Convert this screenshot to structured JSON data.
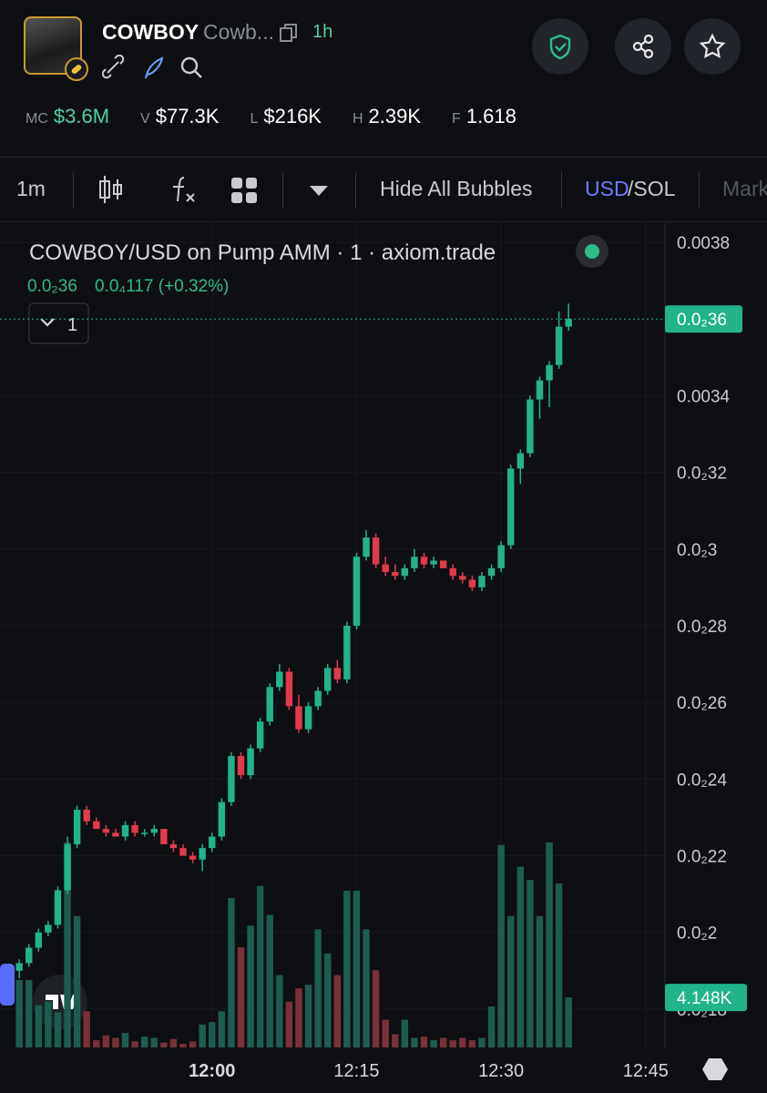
{
  "header": {
    "symbol": "COWBOY",
    "name": "Cowb...",
    "age": "1h",
    "stats": [
      {
        "label": "MC",
        "value": "$3.6M"
      },
      {
        "label": "V",
        "value": "$77.3K"
      },
      {
        "label": "L",
        "value": "$216K"
      },
      {
        "label": "H",
        "value": "2.39K"
      },
      {
        "label": "F",
        "value": "1.618"
      }
    ]
  },
  "toolbar": {
    "interval": "1m",
    "bubbles": "Hide All Bubbles",
    "currency": "USD",
    "quote": "/SOL",
    "more": "Mark"
  },
  "chart_data": {
    "type": "candlestick",
    "title": "COWBOY/USD on Pump AMM · 1 · axiom.trade",
    "change": "0.0₄117 (+0.32%)",
    "pane_label": "1",
    "x": [
      "11:40",
      "11:41",
      "11:42",
      "11:43",
      "11:44",
      "11:45",
      "11:46",
      "11:47",
      "11:48",
      "11:49",
      "11:50",
      "11:51",
      "11:52",
      "11:53",
      "11:54",
      "11:55",
      "11:56",
      "11:57",
      "11:58",
      "11:59",
      "12:00",
      "12:01",
      "12:02",
      "12:03",
      "12:04",
      "12:05",
      "12:06",
      "12:07",
      "12:08",
      "12:09",
      "12:10",
      "12:11",
      "12:12",
      "12:13",
      "12:14",
      "12:15",
      "12:16",
      "12:17",
      "12:18",
      "12:19",
      "12:20",
      "12:21",
      "12:22",
      "12:23",
      "12:24",
      "12:25",
      "12:26",
      "12:27",
      "12:28",
      "12:29",
      "12:30",
      "12:31",
      "12:32",
      "12:33",
      "12:34",
      "12:35",
      "12:36",
      "12:37"
    ],
    "open": [
      0.0019,
      0.00192,
      0.00196,
      0.002,
      0.00202,
      0.00211,
      0.00223,
      0.00232,
      0.00229,
      0.00227,
      0.00226,
      0.00225,
      0.00228,
      0.00226,
      0.00226,
      0.00227,
      0.00223,
      0.00222,
      0.0022,
      0.00219,
      0.00222,
      0.00225,
      0.00234,
      0.00246,
      0.00241,
      0.00248,
      0.00255,
      0.00264,
      0.00268,
      0.00259,
      0.00253,
      0.00259,
      0.00263,
      0.00269,
      0.00266,
      0.0028,
      0.00298,
      0.00303,
      0.00296,
      0.00294,
      0.00293,
      0.00295,
      0.00298,
      0.00296,
      0.00297,
      0.00295,
      0.00293,
      0.00292,
      0.0029,
      0.00293,
      0.00295,
      0.00301,
      0.00321,
      0.00325,
      0.00339,
      0.00344,
      0.00348,
      0.00358
    ],
    "high": [
      0.00193,
      0.00197,
      0.00201,
      0.00203,
      0.00212,
      0.00225,
      0.00233,
      0.00233,
      0.0023,
      0.00228,
      0.00227,
      0.00229,
      0.00229,
      0.00227,
      0.00228,
      0.00227,
      0.00224,
      0.00223,
      0.00221,
      0.00223,
      0.00226,
      0.00235,
      0.00247,
      0.00247,
      0.00249,
      0.00256,
      0.00265,
      0.0027,
      0.00269,
      0.00262,
      0.0026,
      0.00264,
      0.0027,
      0.00271,
      0.00281,
      0.00299,
      0.00305,
      0.00304,
      0.00298,
      0.00296,
      0.00296,
      0.003,
      0.00299,
      0.00298,
      0.00297,
      0.00296,
      0.00294,
      0.00293,
      0.00294,
      0.00296,
      0.00302,
      0.00322,
      0.00326,
      0.0034,
      0.00345,
      0.00349,
      0.00362,
      0.00364
    ],
    "low": [
      0.00188,
      0.00191,
      0.00195,
      0.00199,
      0.00201,
      0.0021,
      0.00222,
      0.00228,
      0.00227,
      0.00225,
      0.00225,
      0.00224,
      0.00225,
      0.00225,
      0.00225,
      0.00223,
      0.00221,
      0.0022,
      0.00218,
      0.00216,
      0.00221,
      0.00224,
      0.00233,
      0.0024,
      0.0024,
      0.00247,
      0.00254,
      0.00263,
      0.00258,
      0.00252,
      0.00252,
      0.00258,
      0.00262,
      0.00265,
      0.00265,
      0.00279,
      0.00297,
      0.00295,
      0.00293,
      0.00292,
      0.00292,
      0.00294,
      0.00295,
      0.00295,
      0.00295,
      0.00292,
      0.00291,
      0.00289,
      0.00289,
      0.00292,
      0.00294,
      0.003,
      0.00317,
      0.00324,
      0.00334,
      0.00337,
      0.00347,
      0.00357
    ],
    "close": [
      0.00192,
      0.00196,
      0.002,
      0.00202,
      0.00211,
      0.00223,
      0.00232,
      0.00229,
      0.00227,
      0.00226,
      0.00225,
      0.00228,
      0.00226,
      0.00226,
      0.00227,
      0.00223,
      0.00222,
      0.0022,
      0.00219,
      0.00222,
      0.00225,
      0.00234,
      0.00246,
      0.00241,
      0.00248,
      0.00255,
      0.00264,
      0.00268,
      0.00259,
      0.00253,
      0.00259,
      0.00263,
      0.00269,
      0.00266,
      0.0028,
      0.00298,
      0.00303,
      0.00296,
      0.00294,
      0.00293,
      0.00295,
      0.00298,
      0.00296,
      0.00297,
      0.00295,
      0.00293,
      0.00292,
      0.0029,
      0.00293,
      0.00295,
      0.00301,
      0.00321,
      0.00325,
      0.00339,
      0.00344,
      0.00348,
      0.00358,
      0.0036
    ],
    "close_label": "0.0₂36",
    "volumes": [
      5600,
      5600,
      3500,
      3800,
      2900,
      17000,
      10900,
      3000,
      600,
      1000,
      800,
      1200,
      500,
      900,
      800,
      400,
      700,
      300,
      500,
      1900,
      2100,
      3000,
      12400,
      8300,
      10100,
      13400,
      11000,
      6000,
      3800,
      4900,
      5200,
      9800,
      7800,
      6000,
      13000,
      13000,
      9800,
      6400,
      2300,
      1100,
      2300,
      800,
      900,
      600,
      800,
      600,
      800,
      600,
      800,
      3400,
      16800,
      10900,
      15000,
      13900,
      10900,
      17000,
      13600,
      4148
    ],
    "volume_label": "4.148K",
    "up_color": "#22b38a",
    "down_color": "#e2394c",
    "up_volume_color": "#1d5d50",
    "down_volume_color": "#7a3038",
    "xlim": [
      "11:38",
      "12:47"
    ],
    "xticks": [
      "12:00",
      "12:15",
      "12:30",
      "12:45"
    ],
    "ylim": [
      0.0017,
      0.00385
    ],
    "yticks": [
      0.0038,
      0.0034,
      {
        "value": 0.0032,
        "label": "0.0₂32"
      },
      {
        "value": 0.003,
        "label": "0.0₂3"
      },
      {
        "value": 0.0028,
        "label": "0.0₂28"
      },
      {
        "value": 0.0026,
        "label": "0.0₂26"
      },
      {
        "value": 0.0024,
        "label": "0.0₂24"
      },
      {
        "value": 0.0022,
        "label": "0.0₂22"
      },
      {
        "value": 0.002,
        "label": "0.0₂2"
      },
      {
        "value": 0.0018,
        "label": "0.0₂18"
      }
    ],
    "grid": true
  }
}
